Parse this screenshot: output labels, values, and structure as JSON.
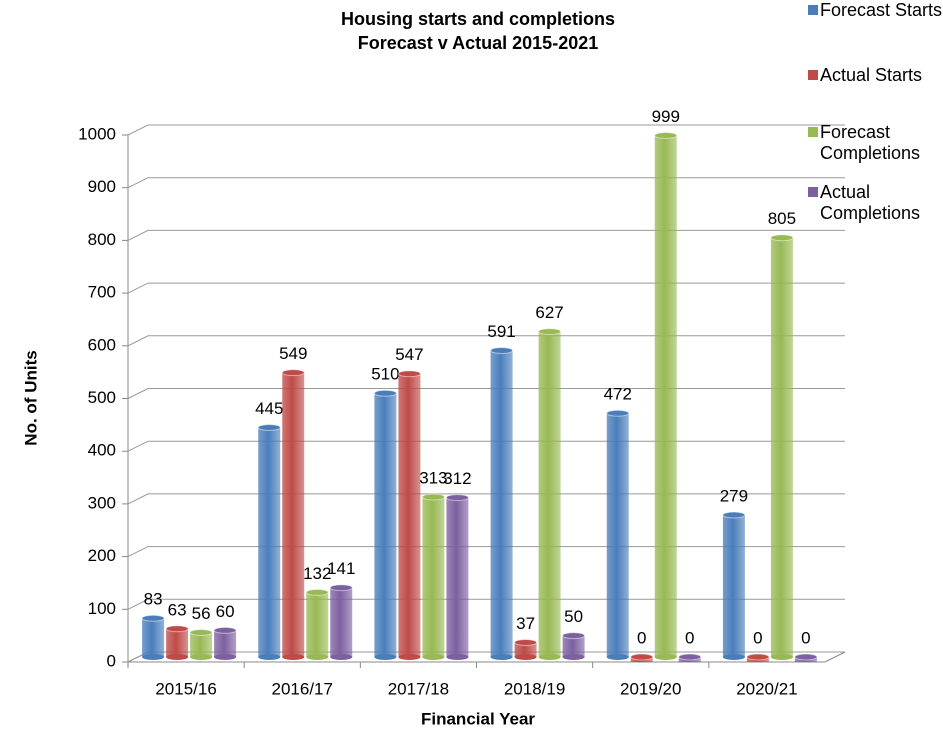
{
  "chart_data": {
    "type": "bar",
    "title": "Housing starts and completions",
    "subtitle": "Forecast v Actual 2015-2021",
    "y_label": "No. of Units",
    "x_label": "Financial Year",
    "categories": [
      "2015/16",
      "2016/17",
      "2017/18",
      "2018/19",
      "2019/20",
      "2020/21"
    ],
    "series": [
      {
        "name": "Forecast Starts",
        "color": "#4a7ebb",
        "values": [
          83,
          445,
          510,
          591,
          472,
          279
        ]
      },
      {
        "name": "Actual Starts",
        "color": "#be4b48",
        "values": [
          63,
          549,
          547,
          37,
          0,
          0
        ]
      },
      {
        "name": "Forecast Completions",
        "color": "#98b954",
        "values": [
          56,
          132,
          313,
          627,
          999,
          805
        ]
      },
      {
        "name": "Actual Completions",
        "color": "#7d60a0",
        "values": [
          60,
          141,
          312,
          50,
          0,
          0
        ]
      }
    ],
    "ylim": [
      0,
      1000
    ],
    "yticks": [
      0,
      100,
      200,
      300,
      400,
      500,
      600,
      700,
      800,
      900,
      1000
    ],
    "grid": true,
    "legend": "right"
  }
}
